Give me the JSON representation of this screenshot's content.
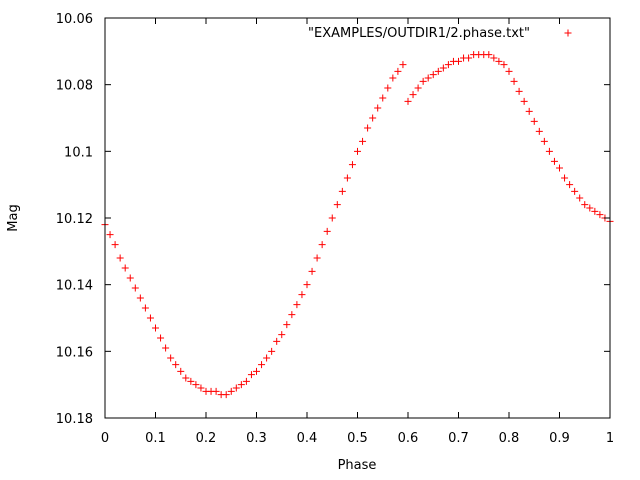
{
  "chart_data": {
    "type": "scatter",
    "title": "",
    "xlabel": "Phase",
    "ylabel": "Mag",
    "xlim": [
      0,
      1
    ],
    "ylim": [
      10.06,
      10.18
    ],
    "y_inverted": true,
    "grid": false,
    "legend_position": "top-right",
    "x_ticks": [
      "0",
      "0.1",
      "0.2",
      "0.3",
      "0.4",
      "0.5",
      "0.6",
      "0.7",
      "0.8",
      "0.9",
      "1"
    ],
    "y_ticks": [
      "10.06",
      "10.08",
      "10.1",
      "10.12",
      "10.14",
      "10.16",
      "10.18"
    ],
    "marker": "+",
    "color": "#ff0000",
    "series": [
      {
        "name": "\"EXAMPLES/OUTDIR1/2.phase.txt\"",
        "x": [
          0.0,
          0.01,
          0.02,
          0.03,
          0.04,
          0.05,
          0.06,
          0.07,
          0.08,
          0.09,
          0.1,
          0.11,
          0.12,
          0.13,
          0.14,
          0.15,
          0.16,
          0.17,
          0.18,
          0.19,
          0.2,
          0.21,
          0.22,
          0.23,
          0.24,
          0.25,
          0.26,
          0.27,
          0.28,
          0.29,
          0.3,
          0.31,
          0.32,
          0.33,
          0.34,
          0.35,
          0.36,
          0.37,
          0.38,
          0.39,
          0.4,
          0.41,
          0.42,
          0.43,
          0.44,
          0.45,
          0.46,
          0.47,
          0.48,
          0.49,
          0.5,
          0.51,
          0.52,
          0.53,
          0.54,
          0.55,
          0.56,
          0.57,
          0.58,
          0.59,
          0.6,
          0.61,
          0.62,
          0.63,
          0.64,
          0.65,
          0.66,
          0.67,
          0.68,
          0.69,
          0.7,
          0.71,
          0.72,
          0.73,
          0.74,
          0.75,
          0.76,
          0.77,
          0.78,
          0.79,
          0.8,
          0.81,
          0.82,
          0.83,
          0.84,
          0.85,
          0.86,
          0.87,
          0.88,
          0.89,
          0.9,
          0.91,
          0.92,
          0.93,
          0.94,
          0.95,
          0.96,
          0.97,
          0.98,
          0.99,
          1.0
        ],
        "y": [
          10.122,
          10.125,
          10.128,
          10.132,
          10.135,
          10.138,
          10.141,
          10.144,
          10.147,
          10.15,
          10.153,
          10.156,
          10.159,
          10.162,
          10.164,
          10.166,
          10.168,
          10.169,
          10.17,
          10.171,
          10.172,
          10.172,
          10.172,
          10.173,
          10.173,
          10.172,
          10.171,
          10.17,
          10.169,
          10.167,
          10.166,
          10.164,
          10.162,
          10.16,
          10.157,
          10.155,
          10.152,
          10.149,
          10.146,
          10.143,
          10.14,
          10.136,
          10.132,
          10.128,
          10.124,
          10.12,
          10.116,
          10.112,
          10.108,
          10.104,
          10.1,
          10.097,
          10.093,
          10.09,
          10.087,
          10.084,
          10.081,
          10.078,
          10.076,
          10.074,
          10.085,
          10.083,
          10.081,
          10.079,
          10.078,
          10.077,
          10.076,
          10.075,
          10.074,
          10.073,
          10.073,
          10.072,
          10.072,
          10.071,
          10.071,
          10.071,
          10.071,
          10.072,
          10.073,
          10.074,
          10.076,
          10.079,
          10.082,
          10.085,
          10.088,
          10.091,
          10.094,
          10.097,
          10.1,
          10.103,
          10.105,
          10.108,
          10.11,
          10.112,
          10.114,
          10.116,
          10.117,
          10.118,
          10.119,
          10.12,
          10.121
        ]
      }
    ]
  }
}
